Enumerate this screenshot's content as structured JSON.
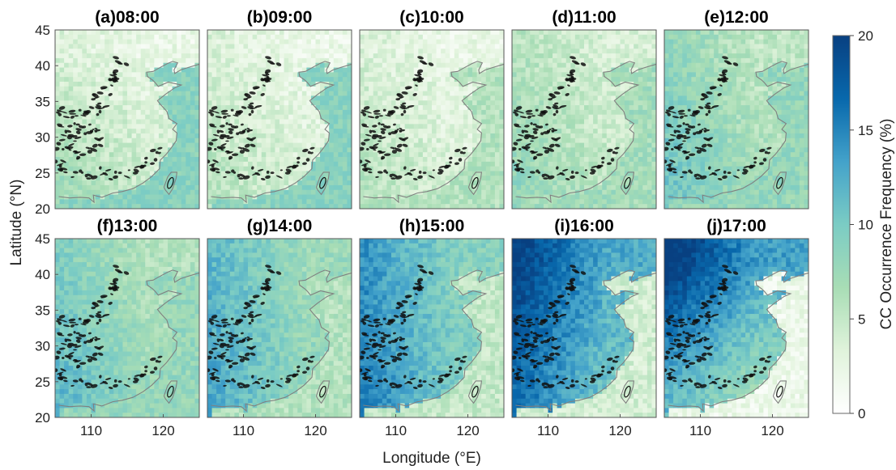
{
  "chart_data": {
    "type": "heatmap",
    "panels": [
      {
        "title": "(a)08:00",
        "mean_ocean": 9,
        "mean_land_south": 6,
        "mean_land_north": 3,
        "peak": 10
      },
      {
        "title": "(b)09:00",
        "mean_ocean": 9,
        "mean_land_south": 5,
        "mean_land_north": 3,
        "peak": 10
      },
      {
        "title": "(c)10:00",
        "mean_ocean": 6,
        "mean_land_south": 5,
        "mean_land_north": 3,
        "peak": 8
      },
      {
        "title": "(d)11:00",
        "mean_ocean": 7,
        "mean_land_south": 7,
        "mean_land_north": 5,
        "peak": 10
      },
      {
        "title": "(e)12:00",
        "mean_ocean": 8,
        "mean_land_south": 9,
        "mean_land_north": 7,
        "peak": 12
      },
      {
        "title": "(f)13:00",
        "mean_ocean": 8,
        "mean_land_south": 10,
        "mean_land_north": 8,
        "peak": 13
      },
      {
        "title": "(g)14:00",
        "mean_ocean": 6,
        "mean_land_south": 11,
        "mean_land_north": 10,
        "peak": 14
      },
      {
        "title": "(h)15:00",
        "mean_ocean": 5,
        "mean_land_south": 13,
        "mean_land_north": 12,
        "peak": 16
      },
      {
        "title": "(i)16:00",
        "mean_ocean": 4,
        "mean_land_south": 14,
        "mean_land_north": 17,
        "peak": 20
      },
      {
        "title": "(j)17:00",
        "mean_ocean": 2,
        "mean_land_south": 10,
        "mean_land_north": 18,
        "peak": 20
      }
    ],
    "xlabel": "Longitude (°E)",
    "ylabel": "Latitude (°N)",
    "xlim": [
      105,
      125
    ],
    "ylim": [
      20,
      45
    ],
    "xticks": [
      110,
      120
    ],
    "yticks": [
      20,
      25,
      30,
      35,
      40,
      45
    ],
    "colorbar": {
      "label": "CC Occurrence Frequency (%)",
      "range": [
        0,
        20
      ],
      "ticks": [
        0,
        5,
        10,
        15,
        20
      ],
      "colormap": "GnBu",
      "colors": [
        "#ffffff",
        "#e0f3db",
        "#a8ddb5",
        "#7bccc4",
        "#43a2ca",
        "#0868ac",
        "#084081"
      ]
    },
    "grid": false,
    "coastline_color": "#808080"
  }
}
